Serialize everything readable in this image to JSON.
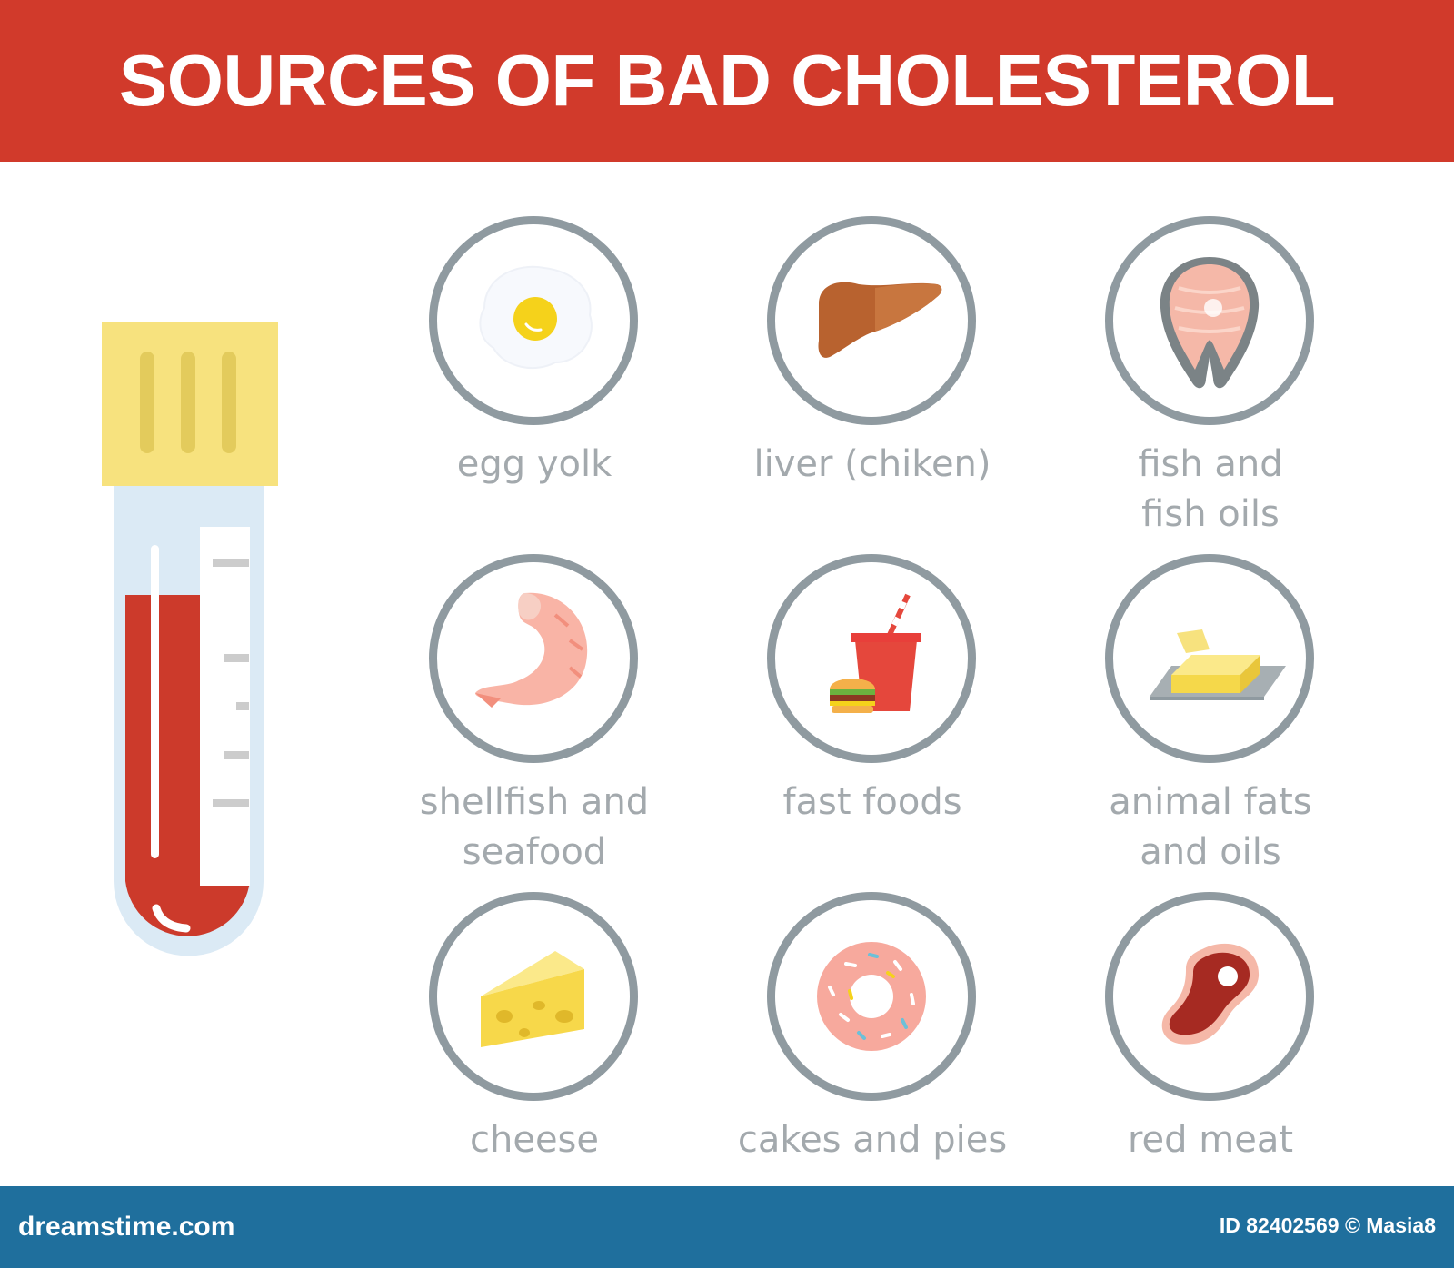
{
  "header": {
    "title": "SOURCES OF BAD CHOLESTEROL"
  },
  "colors": {
    "banner": "#d13a2b",
    "footer": "#1f6f9d",
    "ring": "#8f9aa0",
    "label": "#a3a9ad",
    "blood": "#cc3a2b",
    "cap": "#f7e27e"
  },
  "items": [
    {
      "icon": "egg-icon",
      "lines": [
        "egg yolk"
      ]
    },
    {
      "icon": "liver-icon",
      "lines": [
        "liver (chiken)"
      ]
    },
    {
      "icon": "fish-steak-icon",
      "lines": [
        "fish and",
        "fish oils"
      ]
    },
    {
      "icon": "shrimp-icon",
      "lines": [
        "shellfish and",
        "seafood"
      ]
    },
    {
      "icon": "fast-food-icon",
      "lines": [
        "fast foods"
      ]
    },
    {
      "icon": "butter-icon",
      "lines": [
        "animal fats",
        "and oils"
      ]
    },
    {
      "icon": "cheese-icon",
      "lines": [
        "cheese"
      ]
    },
    {
      "icon": "donut-icon",
      "lines": [
        "cakes and pies"
      ]
    },
    {
      "icon": "steak-icon",
      "lines": [
        "red meat"
      ]
    }
  ],
  "footer": {
    "brand": "dreamstime.com",
    "id_text": "ID 82402569 © Masia8"
  }
}
